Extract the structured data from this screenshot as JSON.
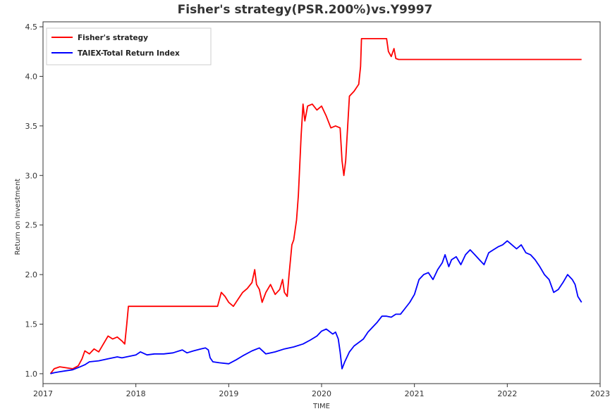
{
  "chart_data": {
    "type": "line",
    "title": "Fisher's strategy(PSR.200%)vs.Y9997",
    "xlabel": "TIME",
    "ylabel": "Return on Investment",
    "xlim": [
      2017.0,
      2023.0
    ],
    "ylim": [
      0.9,
      4.55
    ],
    "x_ticks": [
      "2017",
      "2018",
      "2019",
      "2020",
      "2021",
      "2022",
      "2023"
    ],
    "y_ticks": [
      "1.0",
      "1.5",
      "2.0",
      "2.5",
      "3.0",
      "3.5",
      "4.0",
      "4.5"
    ],
    "grid": false,
    "legend_position": "top-left",
    "series": [
      {
        "name": "Fisher's strategy",
        "color": "#ff0000",
        "points": [
          [
            2017.08,
            1.0
          ],
          [
            2017.12,
            1.05
          ],
          [
            2017.18,
            1.07
          ],
          [
            2017.25,
            1.06
          ],
          [
            2017.32,
            1.05
          ],
          [
            2017.38,
            1.08
          ],
          [
            2017.42,
            1.15
          ],
          [
            2017.45,
            1.23
          ],
          [
            2017.5,
            1.2
          ],
          [
            2017.55,
            1.25
          ],
          [
            2017.6,
            1.22
          ],
          [
            2017.65,
            1.3
          ],
          [
            2017.7,
            1.38
          ],
          [
            2017.75,
            1.35
          ],
          [
            2017.8,
            1.37
          ],
          [
            2017.85,
            1.33
          ],
          [
            2017.88,
            1.3
          ],
          [
            2017.9,
            1.48
          ],
          [
            2017.92,
            1.68
          ],
          [
            2018.0,
            1.68
          ],
          [
            2018.4,
            1.68
          ],
          [
            2018.8,
            1.68
          ],
          [
            2018.88,
            1.68
          ],
          [
            2018.92,
            1.82
          ],
          [
            2018.96,
            1.78
          ],
          [
            2019.0,
            1.72
          ],
          [
            2019.05,
            1.68
          ],
          [
            2019.1,
            1.75
          ],
          [
            2019.15,
            1.82
          ],
          [
            2019.2,
            1.86
          ],
          [
            2019.25,
            1.92
          ],
          [
            2019.28,
            2.05
          ],
          [
            2019.3,
            1.9
          ],
          [
            2019.33,
            1.85
          ],
          [
            2019.36,
            1.72
          ],
          [
            2019.4,
            1.82
          ],
          [
            2019.45,
            1.9
          ],
          [
            2019.5,
            1.8
          ],
          [
            2019.55,
            1.85
          ],
          [
            2019.58,
            1.95
          ],
          [
            2019.6,
            1.82
          ],
          [
            2019.63,
            1.78
          ],
          [
            2019.65,
            2.0
          ],
          [
            2019.68,
            2.3
          ],
          [
            2019.7,
            2.35
          ],
          [
            2019.73,
            2.55
          ],
          [
            2019.75,
            2.8
          ],
          [
            2019.78,
            3.4
          ],
          [
            2019.8,
            3.72
          ],
          [
            2019.82,
            3.55
          ],
          [
            2019.85,
            3.7
          ],
          [
            2019.9,
            3.72
          ],
          [
            2019.95,
            3.66
          ],
          [
            2020.0,
            3.7
          ],
          [
            2020.05,
            3.6
          ],
          [
            2020.1,
            3.48
          ],
          [
            2020.15,
            3.5
          ],
          [
            2020.2,
            3.48
          ],
          [
            2020.22,
            3.15
          ],
          [
            2020.24,
            3.0
          ],
          [
            2020.26,
            3.15
          ],
          [
            2020.3,
            3.8
          ],
          [
            2020.35,
            3.85
          ],
          [
            2020.4,
            3.92
          ],
          [
            2020.42,
            4.1
          ],
          [
            2020.43,
            4.38
          ],
          [
            2020.5,
            4.38
          ],
          [
            2020.6,
            4.38
          ],
          [
            2020.7,
            4.38
          ],
          [
            2020.72,
            4.25
          ],
          [
            2020.75,
            4.2
          ],
          [
            2020.78,
            4.28
          ],
          [
            2020.8,
            4.18
          ],
          [
            2020.83,
            4.17
          ],
          [
            2020.9,
            4.17
          ],
          [
            2021.5,
            4.17
          ],
          [
            2022.0,
            4.17
          ],
          [
            2022.5,
            4.17
          ],
          [
            2022.8,
            4.17
          ]
        ]
      },
      {
        "name": "TAIEX-Total Return Index",
        "color": "#0000ff",
        "points": [
          [
            2017.08,
            1.0
          ],
          [
            2017.12,
            1.01
          ],
          [
            2017.18,
            1.02
          ],
          [
            2017.25,
            1.03
          ],
          [
            2017.32,
            1.04
          ],
          [
            2017.4,
            1.07
          ],
          [
            2017.45,
            1.09
          ],
          [
            2017.5,
            1.12
          ],
          [
            2017.6,
            1.13
          ],
          [
            2017.7,
            1.15
          ],
          [
            2017.8,
            1.17
          ],
          [
            2017.85,
            1.16
          ],
          [
            2017.9,
            1.17
          ],
          [
            2018.0,
            1.19
          ],
          [
            2018.05,
            1.22
          ],
          [
            2018.12,
            1.19
          ],
          [
            2018.2,
            1.2
          ],
          [
            2018.3,
            1.2
          ],
          [
            2018.4,
            1.21
          ],
          [
            2018.5,
            1.24
          ],
          [
            2018.55,
            1.21
          ],
          [
            2018.62,
            1.23
          ],
          [
            2018.7,
            1.25
          ],
          [
            2018.75,
            1.26
          ],
          [
            2018.78,
            1.24
          ],
          [
            2018.8,
            1.16
          ],
          [
            2018.83,
            1.12
          ],
          [
            2018.9,
            1.11
          ],
          [
            2019.0,
            1.1
          ],
          [
            2019.08,
            1.14
          ],
          [
            2019.15,
            1.18
          ],
          [
            2019.25,
            1.23
          ],
          [
            2019.33,
            1.26
          ],
          [
            2019.4,
            1.2
          ],
          [
            2019.5,
            1.22
          ],
          [
            2019.6,
            1.25
          ],
          [
            2019.7,
            1.27
          ],
          [
            2019.8,
            1.3
          ],
          [
            2019.88,
            1.34
          ],
          [
            2019.95,
            1.38
          ],
          [
            2020.0,
            1.43
          ],
          [
            2020.05,
            1.45
          ],
          [
            2020.08,
            1.43
          ],
          [
            2020.12,
            1.4
          ],
          [
            2020.15,
            1.42
          ],
          [
            2020.18,
            1.35
          ],
          [
            2020.2,
            1.22
          ],
          [
            2020.22,
            1.05
          ],
          [
            2020.25,
            1.12
          ],
          [
            2020.3,
            1.22
          ],
          [
            2020.35,
            1.28
          ],
          [
            2020.45,
            1.35
          ],
          [
            2020.5,
            1.42
          ],
          [
            2020.55,
            1.47
          ],
          [
            2020.6,
            1.52
          ],
          [
            2020.65,
            1.58
          ],
          [
            2020.7,
            1.58
          ],
          [
            2020.75,
            1.57
          ],
          [
            2020.8,
            1.6
          ],
          [
            2020.85,
            1.6
          ],
          [
            2020.9,
            1.66
          ],
          [
            2020.95,
            1.72
          ],
          [
            2021.0,
            1.8
          ],
          [
            2021.05,
            1.95
          ],
          [
            2021.1,
            2.0
          ],
          [
            2021.15,
            2.02
          ],
          [
            2021.2,
            1.95
          ],
          [
            2021.25,
            2.05
          ],
          [
            2021.3,
            2.12
          ],
          [
            2021.33,
            2.2
          ],
          [
            2021.37,
            2.08
          ],
          [
            2021.4,
            2.15
          ],
          [
            2021.45,
            2.18
          ],
          [
            2021.5,
            2.1
          ],
          [
            2021.55,
            2.2
          ],
          [
            2021.6,
            2.25
          ],
          [
            2021.65,
            2.2
          ],
          [
            2021.7,
            2.15
          ],
          [
            2021.75,
            2.1
          ],
          [
            2021.8,
            2.22
          ],
          [
            2021.85,
            2.25
          ],
          [
            2021.9,
            2.28
          ],
          [
            2021.95,
            2.3
          ],
          [
            2022.0,
            2.34
          ],
          [
            2022.05,
            2.3
          ],
          [
            2022.1,
            2.26
          ],
          [
            2022.15,
            2.3
          ],
          [
            2022.2,
            2.22
          ],
          [
            2022.25,
            2.2
          ],
          [
            2022.3,
            2.15
          ],
          [
            2022.35,
            2.08
          ],
          [
            2022.4,
            2.0
          ],
          [
            2022.45,
            1.95
          ],
          [
            2022.5,
            1.82
          ],
          [
            2022.55,
            1.85
          ],
          [
            2022.6,
            1.92
          ],
          [
            2022.65,
            2.0
          ],
          [
            2022.7,
            1.95
          ],
          [
            2022.73,
            1.9
          ],
          [
            2022.76,
            1.78
          ],
          [
            2022.8,
            1.72
          ]
        ]
      }
    ]
  }
}
